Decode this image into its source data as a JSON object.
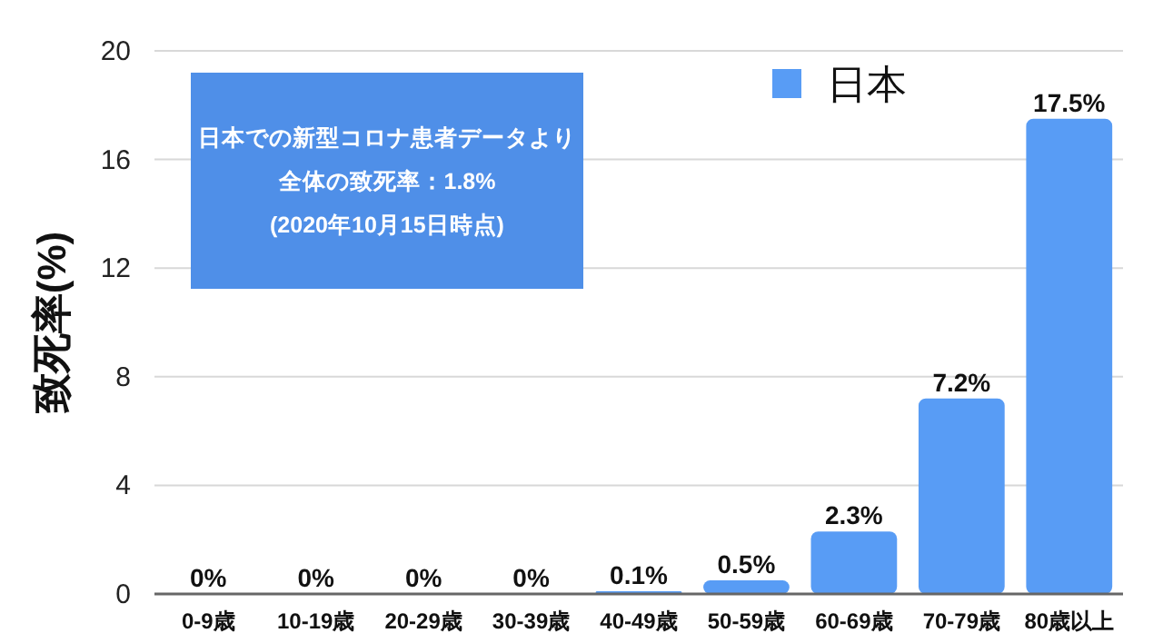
{
  "chart_data": {
    "type": "bar",
    "ylabel": "致死率(%)",
    "categories": [
      "0-9歳",
      "10-19歳",
      "20-29歳",
      "30-39歳",
      "40-49歳",
      "50-59歳",
      "60-69歳",
      "70-79歳",
      "80歳以上"
    ],
    "series": [
      {
        "name": "日本",
        "color": "#589cf5",
        "values": [
          0,
          0,
          0,
          0,
          0.1,
          0.5,
          2.3,
          7.2,
          17.5
        ],
        "value_labels": [
          "0%",
          "0%",
          "0%",
          "0%",
          "0.1%",
          "0.5%",
          "2.3%",
          "7.2%",
          "17.5%"
        ]
      }
    ],
    "ylim": [
      0,
      20
    ],
    "yticks": [
      0,
      4,
      8,
      12,
      16,
      20
    ],
    "grid": "y",
    "legend": "top right",
    "annotations": [
      "日本での新型コロナ患者データより",
      "全体の致死率：1.8%",
      "(2020年10月15日時点)"
    ]
  }
}
